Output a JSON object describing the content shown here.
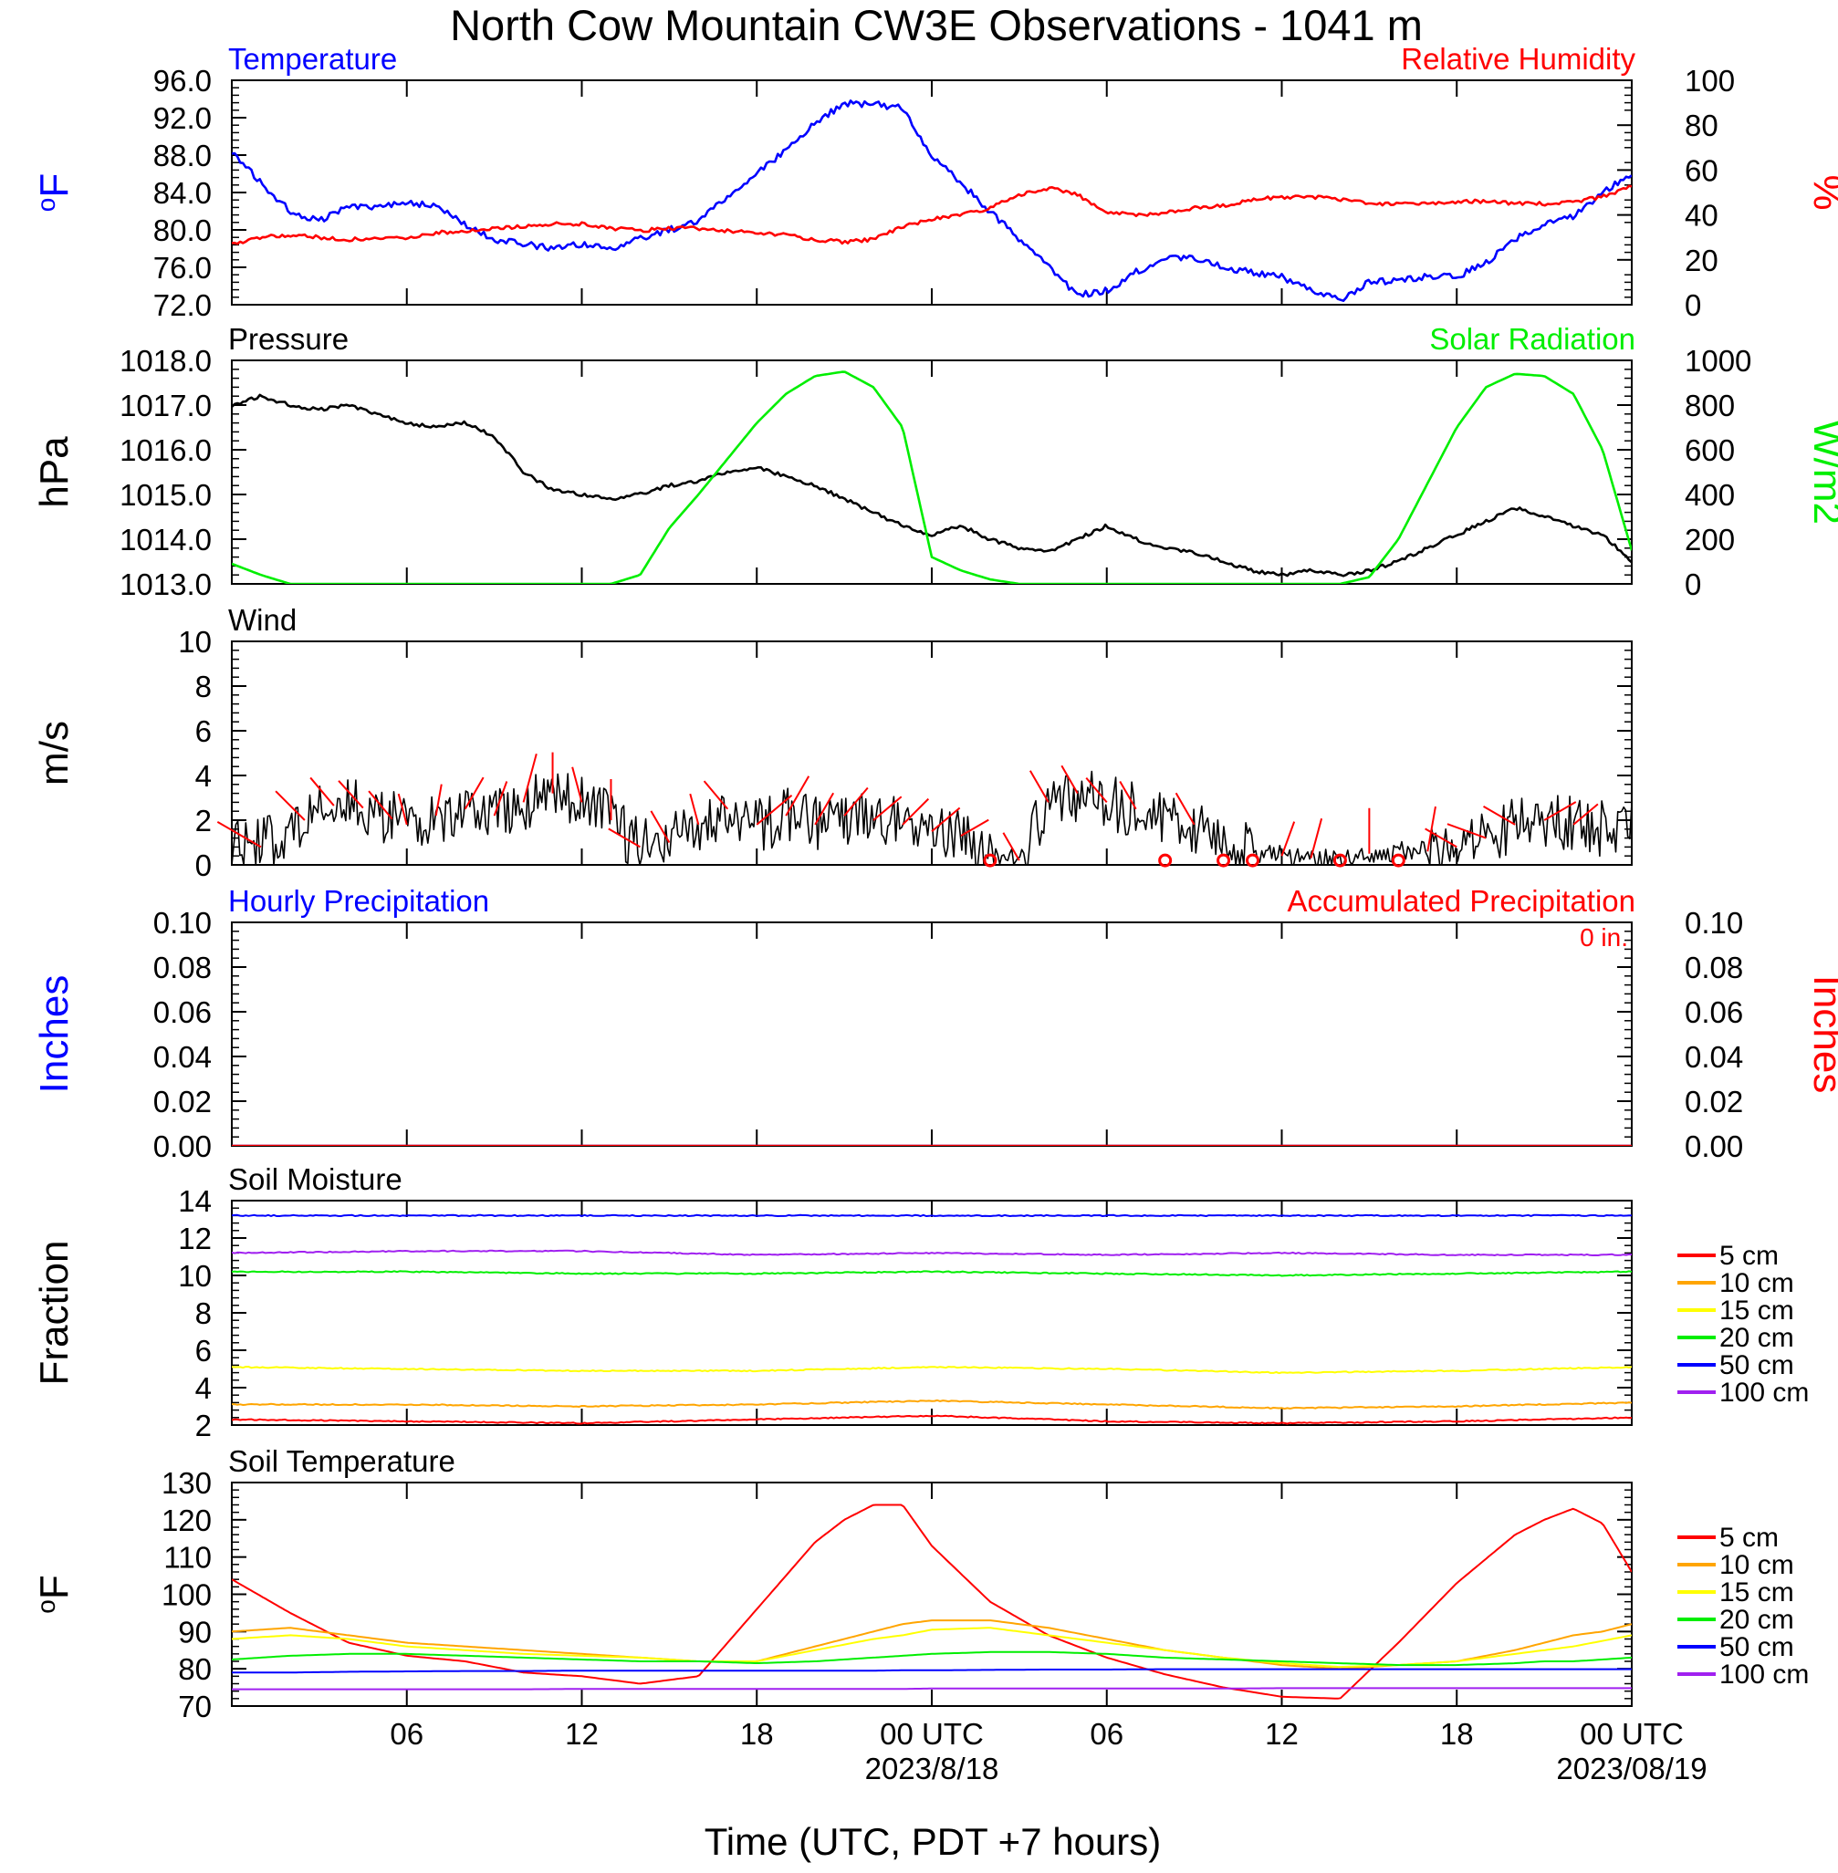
{
  "figure": {
    "title": "North Cow Mountain CW3E Observations - 1041 m",
    "x_axis_label": "Time (UTC, PDT +7 hours)",
    "x_ticks": [
      "06",
      "12",
      "18",
      "00 UTC",
      "06",
      "12",
      "18",
      "00 UTC"
    ],
    "x_dates": [
      "2023/8/18",
      "2023/08/19"
    ],
    "colors": {
      "temperature": "#0000ff",
      "humidity": "#ff0000",
      "pressure": "#000000",
      "solar": "#00ee00",
      "wind": "#000000",
      "barb": "#ff0000"
    }
  },
  "chart_data": [
    {
      "id": "temp_rh",
      "type": "line",
      "left_title": "Temperature",
      "right_title": "Relative Humidity",
      "left_unit": "oF",
      "right_unit": "%",
      "ylim_left": [
        72,
        96
      ],
      "ylim_right": [
        0,
        100
      ],
      "yticks_left": [
        "96.0",
        "92.0",
        "88.0",
        "84.0",
        "80.0",
        "76.0",
        "72.0"
      ],
      "yticks_right": [
        "100",
        "80",
        "60",
        "40",
        "20",
        "0"
      ],
      "x_hours": [
        0,
        1,
        2,
        3,
        4,
        5,
        6,
        7,
        8,
        9,
        10,
        11,
        12,
        13,
        14,
        15,
        16,
        17,
        18,
        19,
        20,
        21,
        22,
        23,
        24,
        25,
        26,
        27,
        28,
        29,
        30,
        31,
        32,
        33,
        34,
        35,
        36,
        37,
        38,
        39,
        40,
        41,
        42,
        43,
        44,
        45,
        46,
        47,
        48
      ],
      "series": [
        {
          "name": "Temperature",
          "axis": "left",
          "color": "#0000ff",
          "values": [
            88.5,
            85,
            82,
            81,
            82.5,
            82.5,
            83,
            82.5,
            80.5,
            79,
            78.5,
            78,
            78.5,
            78,
            79,
            80,
            81,
            83.5,
            86,
            88.5,
            91.5,
            93.5,
            93.5,
            93,
            88,
            85,
            82,
            79,
            76,
            73,
            73.5,
            75.5,
            77,
            77,
            76,
            75.5,
            75,
            73.5,
            72.5,
            74.5,
            74.5,
            75,
            75,
            76.5,
            79,
            80.5,
            81.5,
            84,
            86
          ]
        },
        {
          "name": "Relative Humidity",
          "axis": "right",
          "color": "#ff0000",
          "values": [
            27,
            30,
            31,
            30,
            29,
            30,
            30,
            32,
            33,
            34,
            35,
            36,
            36,
            34,
            33,
            34,
            34,
            33,
            32,
            31,
            29,
            28,
            29,
            35,
            38,
            40,
            43,
            49,
            52,
            49,
            41,
            40,
            41,
            43,
            44,
            47,
            48,
            48,
            47,
            45,
            45,
            45,
            46,
            46,
            45,
            45,
            46,
            48,
            53
          ]
        }
      ]
    },
    {
      "id": "pres_solar",
      "type": "line",
      "left_title": "Pressure",
      "right_title": "Solar Radiation",
      "left_unit": "hPa",
      "right_unit": "W/m2",
      "ylim_left": [
        1013,
        1018
      ],
      "ylim_right": [
        0,
        1000
      ],
      "yticks_left": [
        "1018.0",
        "1017.0",
        "1016.0",
        "1015.0",
        "1014.0",
        "1013.0"
      ],
      "yticks_right": [
        "1000",
        "800",
        "600",
        "400",
        "200",
        "0"
      ],
      "x_hours": [
        0,
        1,
        2,
        3,
        4,
        5,
        6,
        7,
        8,
        9,
        10,
        11,
        12,
        13,
        14,
        15,
        16,
        17,
        18,
        19,
        20,
        21,
        22,
        23,
        24,
        25,
        26,
        27,
        28,
        29,
        30,
        31,
        32,
        33,
        34,
        35,
        36,
        37,
        38,
        39,
        40,
        41,
        42,
        43,
        44,
        45,
        46,
        47,
        48
      ],
      "series": [
        {
          "name": "Pressure",
          "axis": "left",
          "color": "#000000",
          "values": [
            1017.0,
            1017.2,
            1017.0,
            1016.9,
            1017.0,
            1016.8,
            1016.6,
            1016.5,
            1016.6,
            1016.3,
            1015.5,
            1015.1,
            1015.0,
            1014.9,
            1015.0,
            1015.2,
            1015.3,
            1015.5,
            1015.6,
            1015.4,
            1015.2,
            1014.9,
            1014.6,
            1014.3,
            1014.1,
            1014.3,
            1014.0,
            1013.8,
            1013.7,
            1014.0,
            1014.3,
            1014.0,
            1013.8,
            1013.7,
            1013.5,
            1013.3,
            1013.2,
            1013.3,
            1013.2,
            1013.3,
            1013.5,
            1013.8,
            1014.1,
            1014.4,
            1014.7,
            1014.5,
            1014.3,
            1014.1,
            1013.5
          ]
        },
        {
          "name": "Solar Radiation",
          "axis": "right",
          "color": "#00ee00",
          "values": [
            90,
            40,
            0,
            0,
            0,
            0,
            0,
            0,
            0,
            0,
            0,
            0,
            0,
            0,
            40,
            250,
            400,
            560,
            720,
            850,
            930,
            950,
            880,
            700,
            120,
            60,
            20,
            0,
            0,
            0,
            0,
            0,
            0,
            0,
            0,
            0,
            0,
            0,
            0,
            30,
            200,
            450,
            700,
            880,
            940,
            930,
            850,
            600,
            150
          ]
        }
      ]
    },
    {
      "id": "wind",
      "type": "line",
      "left_title": "Wind",
      "left_unit": "m/s",
      "ylim_left": [
        0,
        10
      ],
      "yticks_left": [
        "10",
        "8",
        "6",
        "4",
        "2",
        "0"
      ],
      "x_hours": [
        0,
        1,
        2,
        3,
        4,
        5,
        6,
        7,
        8,
        9,
        10,
        11,
        12,
        13,
        14,
        15,
        16,
        17,
        18,
        19,
        20,
        21,
        22,
        23,
        24,
        25,
        26,
        27,
        28,
        29,
        30,
        31,
        32,
        33,
        34,
        35,
        36,
        37,
        38,
        39,
        40,
        41,
        42,
        43,
        44,
        45,
        46,
        47,
        48
      ],
      "series": [
        {
          "name": "Wind",
          "axis": "left",
          "color": "#000000",
          "values": [
            1.2,
            0.8,
            1.5,
            2.5,
            2.8,
            2.3,
            1.8,
            2.2,
            2.5,
            2.2,
            2.8,
            3.2,
            2.8,
            2.0,
            0.8,
            1.0,
            1.8,
            2.5,
            1.8,
            2.2,
            1.8,
            2.2,
            2.0,
            1.8,
            1.5,
            1.3,
            0.6,
            0.2,
            2.8,
            3.2,
            2.8,
            2.5,
            2.2,
            1.8,
            0.8,
            0.6,
            0.4,
            0.3,
            0.2,
            0.5,
            0.6,
            0.6,
            0.8,
            1.2,
            1.8,
            2.0,
            1.8,
            1.6,
            1.6
          ]
        }
      ],
      "calm_marker_hours": [
        26,
        32,
        34,
        35,
        38,
        40
      ],
      "barbs": [
        {
          "h": 1,
          "a": 300,
          "l": 55
        },
        {
          "h": 2.5,
          "a": 315,
          "l": 45
        },
        {
          "h": 3.5,
          "a": 320,
          "l": 40
        },
        {
          "h": 4.5,
          "a": 318,
          "l": 40
        },
        {
          "h": 5.5,
          "a": 320,
          "l": 40
        },
        {
          "h": 6,
          "a": 345,
          "l": 35
        },
        {
          "h": 7,
          "a": 10,
          "l": 35
        },
        {
          "h": 8,
          "a": 30,
          "l": 40
        },
        {
          "h": 9,
          "a": 20,
          "l": 40
        },
        {
          "h": 10,
          "a": 15,
          "l": 55
        },
        {
          "h": 11,
          "a": 0,
          "l": 45
        },
        {
          "h": 12,
          "a": 345,
          "l": 40
        },
        {
          "h": 13,
          "a": 0,
          "l": 45
        },
        {
          "h": 14,
          "a": 300,
          "l": 40
        },
        {
          "h": 15,
          "a": 330,
          "l": 40
        },
        {
          "h": 16,
          "a": 345,
          "l": 35
        },
        {
          "h": 17,
          "a": 320,
          "l": 40
        },
        {
          "h": 18,
          "a": 50,
          "l": 50
        },
        {
          "h": 19,
          "a": 30,
          "l": 50
        },
        {
          "h": 20,
          "a": 30,
          "l": 40
        },
        {
          "h": 21,
          "a": 40,
          "l": 40
        },
        {
          "h": 22,
          "a": 50,
          "l": 40
        },
        {
          "h": 23,
          "a": 45,
          "l": 40
        },
        {
          "h": 24,
          "a": 50,
          "l": 40
        },
        {
          "h": 25,
          "a": 60,
          "l": 35
        },
        {
          "h": 27,
          "a": 330,
          "l": 35
        },
        {
          "h": 28,
          "a": 330,
          "l": 40
        },
        {
          "h": 29,
          "a": 330,
          "l": 35
        },
        {
          "h": 30,
          "a": 320,
          "l": 35
        },
        {
          "h": 31,
          "a": 330,
          "l": 35
        },
        {
          "h": 33,
          "a": 330,
          "l": 40
        },
        {
          "h": 36,
          "a": 20,
          "l": 40
        },
        {
          "h": 37,
          "a": 15,
          "l": 45
        },
        {
          "h": 39,
          "a": 0,
          "l": 50
        },
        {
          "h": 41,
          "a": 10,
          "l": 50
        },
        {
          "h": 42,
          "a": 300,
          "l": 40
        },
        {
          "h": 43,
          "a": 290,
          "l": 45
        },
        {
          "h": 44,
          "a": 300,
          "l": 40
        },
        {
          "h": 45,
          "a": 60,
          "l": 40
        },
        {
          "h": 46,
          "a": 50,
          "l": 35
        }
      ]
    },
    {
      "id": "precip",
      "type": "line",
      "left_title": "Hourly Precipitation",
      "right_title": "Accumulated Precipitation",
      "left_unit": "Inches",
      "right_unit": "Inches",
      "total_label": "0 in.",
      "ylim_left": [
        0,
        0.1
      ],
      "ylim_right": [
        0,
        0.1
      ],
      "yticks_left": [
        "0.10",
        "0.08",
        "0.06",
        "0.04",
        "0.02",
        "0.00"
      ],
      "yticks_right": [
        "0.10",
        "0.08",
        "0.06",
        "0.04",
        "0.02",
        "0.00"
      ],
      "x_hours": [
        0,
        48
      ],
      "series": [
        {
          "name": "Hourly Precipitation",
          "axis": "left",
          "color": "#0000ff",
          "values": [
            0,
            0
          ]
        },
        {
          "name": "Accumulated Precipitation",
          "axis": "right",
          "color": "#ff0000",
          "values": [
            0,
            0
          ]
        }
      ]
    },
    {
      "id": "soil_moisture",
      "type": "line",
      "left_title": "Soil Moisture",
      "left_unit": "Fraction",
      "ylim_left": [
        2,
        14
      ],
      "yticks_left": [
        "14",
        "12",
        "10",
        "8",
        "6",
        "4",
        "2"
      ],
      "x_hours": [
        0,
        6,
        12,
        18,
        24,
        30,
        36,
        42,
        48
      ],
      "series": [
        {
          "name": "5 cm",
          "color": "#ff0000",
          "values": [
            2.3,
            2.2,
            2.1,
            2.3,
            2.5,
            2.2,
            2.1,
            2.2,
            2.4
          ]
        },
        {
          "name": "10 cm",
          "color": "#ffa500",
          "values": [
            3.1,
            3.1,
            3.0,
            3.1,
            3.3,
            3.1,
            2.9,
            3.0,
            3.2
          ]
        },
        {
          "name": "15 cm",
          "color": "#ffff00",
          "values": [
            5.1,
            5.0,
            4.9,
            4.9,
            5.1,
            5.0,
            4.8,
            4.9,
            5.1
          ]
        },
        {
          "name": "20 cm",
          "color": "#00ee00",
          "values": [
            10.2,
            10.2,
            10.1,
            10.1,
            10.2,
            10.1,
            10.0,
            10.1,
            10.2
          ]
        },
        {
          "name": "50 cm",
          "color": "#0000ff",
          "values": [
            13.2,
            13.2,
            13.2,
            13.2,
            13.2,
            13.2,
            13.2,
            13.2,
            13.2
          ]
        },
        {
          "name": "100 cm",
          "color": "#a020f0",
          "values": [
            11.2,
            11.3,
            11.3,
            11.1,
            11.2,
            11.1,
            11.2,
            11.1,
            11.1
          ]
        }
      ]
    },
    {
      "id": "soil_temp",
      "type": "line",
      "left_title": "Soil Temperature",
      "left_unit": "oF",
      "ylim_left": [
        70,
        130
      ],
      "yticks_left": [
        "130",
        "120",
        "110",
        "100",
        "90",
        "80",
        "70"
      ],
      "x_hours": [
        0,
        2,
        4,
        6,
        8,
        10,
        12,
        14,
        16,
        18,
        20,
        21,
        22,
        23,
        24,
        26,
        28,
        30,
        32,
        34,
        36,
        38,
        40,
        42,
        44,
        45,
        46,
        47,
        48
      ],
      "series": [
        {
          "name": "5 cm",
          "color": "#ff0000",
          "values": [
            104,
            95,
            87,
            83.5,
            82,
            79,
            78,
            76,
            78,
            96,
            114,
            120,
            124,
            124,
            113,
            98,
            89,
            83,
            78.5,
            75,
            72.5,
            72,
            87,
            103,
            116,
            120,
            123,
            119,
            106
          ]
        },
        {
          "name": "10 cm",
          "color": "#ffa500",
          "values": [
            90,
            91,
            89,
            87,
            86,
            85,
            84,
            83,
            82,
            82,
            86,
            88,
            90,
            92,
            93,
            93,
            91,
            88,
            85,
            83,
            81,
            80,
            81,
            82,
            85,
            87,
            89,
            90,
            92
          ]
        },
        {
          "name": "15 cm",
          "color": "#ffff00",
          "values": [
            88,
            89,
            88,
            86,
            85,
            84,
            83.5,
            83,
            82,
            82,
            85,
            86.5,
            88,
            89,
            90.5,
            91,
            89,
            87,
            85,
            83,
            81.5,
            80.5,
            81,
            82,
            84,
            85,
            86,
            87.5,
            89
          ]
        },
        {
          "name": "20 cm",
          "color": "#00ee00",
          "values": [
            82.5,
            83.5,
            84,
            84,
            83.5,
            83,
            82.5,
            82,
            82,
            81.5,
            82,
            82.5,
            83,
            83.5,
            84,
            84.5,
            84.5,
            84,
            83,
            82.5,
            82,
            81.5,
            81,
            81,
            81.5,
            82,
            82,
            82.5,
            83
          ]
        },
        {
          "name": "50 cm",
          "color": "#0000ff",
          "values": [
            79,
            79,
            79.2,
            79.3,
            79.4,
            79.4,
            79.5,
            79.5,
            79.5,
            79.5,
            79.5,
            79.5,
            79.5,
            79.6,
            79.6,
            79.7,
            79.8,
            79.8,
            79.9,
            79.9,
            79.9,
            79.9,
            79.9,
            79.9,
            79.9,
            79.9,
            79.9,
            79.9,
            79.9
          ]
        },
        {
          "name": "100 cm",
          "color": "#a020f0",
          "values": [
            74.5,
            74.5,
            74.5,
            74.5,
            74.5,
            74.5,
            74.6,
            74.6,
            74.6,
            74.6,
            74.6,
            74.6,
            74.6,
            74.6,
            74.7,
            74.7,
            74.7,
            74.7,
            74.7,
            74.7,
            74.8,
            74.8,
            74.8,
            74.8,
            74.8,
            74.8,
            74.8,
            74.8,
            74.8
          ]
        }
      ]
    }
  ]
}
